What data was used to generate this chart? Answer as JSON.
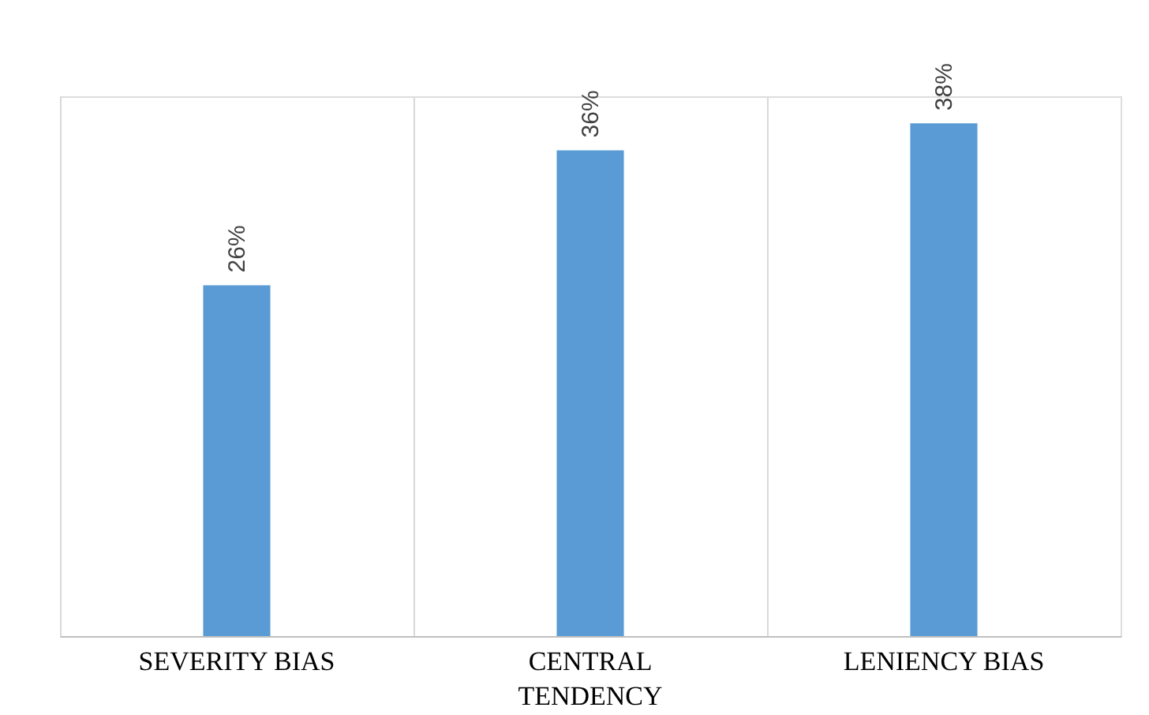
{
  "chart_data": {
    "type": "bar",
    "categories": [
      "SEVERITY BIAS",
      "CENTRAL TENDENCY",
      "LENIENCY BIAS"
    ],
    "values": [
      26,
      36,
      38
    ],
    "value_labels": [
      "26%",
      "36%",
      "38%"
    ],
    "color": "#5b9bd5",
    "ylim": [
      0,
      40
    ],
    "grid": "x"
  }
}
